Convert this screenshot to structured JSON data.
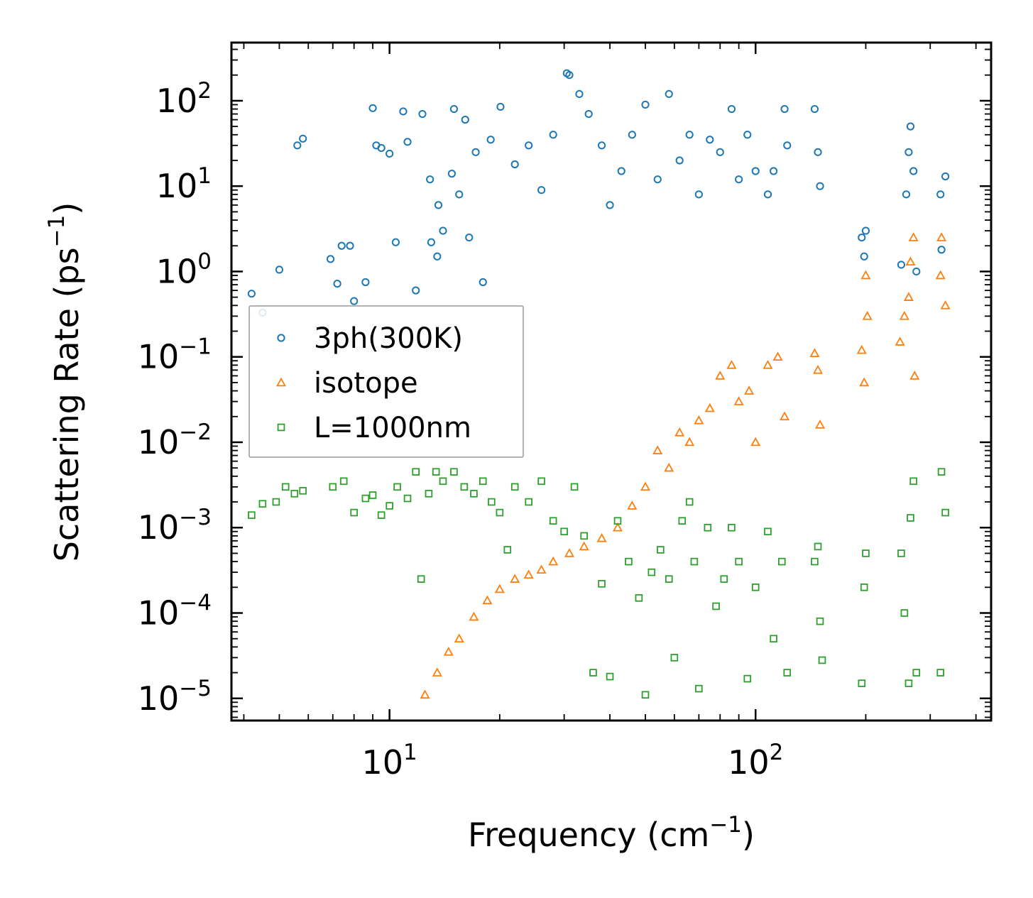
{
  "chart_data": {
    "type": "scatter",
    "xscale": "log",
    "yscale": "log",
    "xlabel": "Frequency",
    "xlabel_unit": "cm",
    "xlabel_unit_exp": "−1",
    "ylabel": "Scattering Rate",
    "ylabel_unit": "ps",
    "ylabel_unit_exp": "−1",
    "xlim": [
      3.7,
      440
    ],
    "ylim": [
      5.5e-06,
      480
    ],
    "xticks": [
      {
        "value": 10,
        "base": "10",
        "exp": "1"
      },
      {
        "value": 100,
        "base": "10",
        "exp": "2"
      }
    ],
    "yticks": [
      {
        "value": 100,
        "base": "10",
        "exp": "2"
      },
      {
        "value": 10,
        "base": "10",
        "exp": "1"
      },
      {
        "value": 1,
        "base": "10",
        "exp": "0"
      },
      {
        "value": 0.1,
        "base": "10",
        "exp": "−1"
      },
      {
        "value": 0.01,
        "base": "10",
        "exp": "−2"
      },
      {
        "value": 0.001,
        "base": "10",
        "exp": "−3"
      },
      {
        "value": 0.0001,
        "base": "10",
        "exp": "−4"
      },
      {
        "value": 1e-05,
        "base": "10",
        "exp": "−5"
      }
    ],
    "legend_position": "center-left",
    "series": [
      {
        "name": "3ph(300K)",
        "marker": "circle",
        "color": "#1f77b4",
        "points": [
          [
            4.2,
            0.55
          ],
          [
            4.5,
            0.33
          ],
          [
            5.0,
            1.05
          ],
          [
            5.6,
            30
          ],
          [
            5.8,
            36
          ],
          [
            6.9,
            1.4
          ],
          [
            7.2,
            0.72
          ],
          [
            7.4,
            2.0
          ],
          [
            7.8,
            2.0
          ],
          [
            8.0,
            0.45
          ],
          [
            8.6,
            0.75
          ],
          [
            9.0,
            82
          ],
          [
            9.2,
            30
          ],
          [
            9.5,
            28
          ],
          [
            10.0,
            24
          ],
          [
            10.4,
            2.2
          ],
          [
            10.9,
            75
          ],
          [
            11.2,
            33
          ],
          [
            11.8,
            0.6
          ],
          [
            12.3,
            70
          ],
          [
            13.0,
            2.2
          ],
          [
            13.5,
            1.5
          ],
          [
            14.0,
            3.0
          ],
          [
            15.0,
            80
          ],
          [
            15.5,
            8
          ],
          [
            16.5,
            2.5
          ],
          [
            18.0,
            0.75
          ],
          [
            12.9,
            12
          ],
          [
            14.8,
            14
          ],
          [
            13.6,
            6
          ],
          [
            16.1,
            60
          ],
          [
            17.2,
            25
          ],
          [
            18.9,
            35
          ],
          [
            20.1,
            85
          ],
          [
            22.0,
            18
          ],
          [
            24.0,
            30
          ],
          [
            26.0,
            9
          ],
          [
            28.0,
            40
          ],
          [
            30.5,
            210
          ],
          [
            31.0,
            200
          ],
          [
            33.0,
            120
          ],
          [
            35.0,
            70
          ],
          [
            38.0,
            30
          ],
          [
            40.0,
            6
          ],
          [
            43.0,
            15
          ],
          [
            46.0,
            40
          ],
          [
            50.0,
            90
          ],
          [
            54.0,
            12
          ],
          [
            58.0,
            120
          ],
          [
            62.0,
            20
          ],
          [
            66.0,
            40
          ],
          [
            70.0,
            8
          ],
          [
            75.0,
            35
          ],
          [
            80.0,
            25
          ],
          [
            86.0,
            80
          ],
          [
            90.0,
            12
          ],
          [
            95.0,
            40
          ],
          [
            100.0,
            15
          ],
          [
            108.0,
            8
          ],
          [
            112.0,
            15
          ],
          [
            120.0,
            80
          ],
          [
            122.0,
            30
          ],
          [
            145.0,
            80
          ],
          [
            148.0,
            25
          ],
          [
            150.0,
            10
          ],
          [
            195.0,
            2.5
          ],
          [
            198.0,
            1.5
          ],
          [
            200.0,
            3.0
          ],
          [
            250.0,
            1.2
          ],
          [
            258.0,
            8
          ],
          [
            262.0,
            25
          ],
          [
            265.0,
            50
          ],
          [
            270.0,
            15
          ],
          [
            275.0,
            1.0
          ],
          [
            320.0,
            8
          ],
          [
            322.0,
            1.8
          ],
          [
            330.0,
            13
          ]
        ]
      },
      {
        "name": "isotope",
        "marker": "triangle",
        "color": "#ff7f0e",
        "points": [
          [
            12.5,
            1.1e-05
          ],
          [
            13.5,
            2e-05
          ],
          [
            14.5,
            3.5e-05
          ],
          [
            15.5,
            5e-05
          ],
          [
            17.0,
            9e-05
          ],
          [
            18.5,
            0.00014
          ],
          [
            20.0,
            0.00019
          ],
          [
            22.0,
            0.00025
          ],
          [
            24.0,
            0.00028
          ],
          [
            26.0,
            0.00032
          ],
          [
            28.0,
            0.0004
          ],
          [
            31.0,
            0.0005
          ],
          [
            34.0,
            0.0006
          ],
          [
            38.0,
            0.00075
          ],
          [
            42.0,
            0.001
          ],
          [
            46.0,
            0.0018
          ],
          [
            50.0,
            0.003
          ],
          [
            54.0,
            0.008
          ],
          [
            58.0,
            0.005
          ],
          [
            62.0,
            0.013
          ],
          [
            66.0,
            0.01
          ],
          [
            70.0,
            0.018
          ],
          [
            75.0,
            0.025
          ],
          [
            80.0,
            0.06
          ],
          [
            86.0,
            0.08
          ],
          [
            90.0,
            0.03
          ],
          [
            96.0,
            0.04
          ],
          [
            100.0,
            0.01
          ],
          [
            108.0,
            0.08
          ],
          [
            115.0,
            0.1
          ],
          [
            120.0,
            0.02
          ],
          [
            145.0,
            0.11
          ],
          [
            148.0,
            0.07
          ],
          [
            150.0,
            0.016
          ],
          [
            195.0,
            0.12
          ],
          [
            198.0,
            0.05
          ],
          [
            200.0,
            0.9
          ],
          [
            202.0,
            0.3
          ],
          [
            248.0,
            0.15
          ],
          [
            255.0,
            0.3
          ],
          [
            262.0,
            0.5
          ],
          [
            265.0,
            1.3
          ],
          [
            270.0,
            2.5
          ],
          [
            272.0,
            0.06
          ],
          [
            320.0,
            0.9
          ],
          [
            322.0,
            2.5
          ],
          [
            330.0,
            0.4
          ]
        ]
      },
      {
        "name": "L=1000nm",
        "marker": "square",
        "color": "#2ca02c",
        "points": [
          [
            4.2,
            0.0014
          ],
          [
            4.5,
            0.0019
          ],
          [
            4.9,
            0.002
          ],
          [
            5.2,
            0.003
          ],
          [
            5.5,
            0.0025
          ],
          [
            5.8,
            0.0027
          ],
          [
            7.0,
            0.003
          ],
          [
            7.5,
            0.0035
          ],
          [
            8.0,
            0.0015
          ],
          [
            8.6,
            0.0022
          ],
          [
            9.0,
            0.0024
          ],
          [
            9.5,
            0.0014
          ],
          [
            10.0,
            0.0018
          ],
          [
            10.5,
            0.003
          ],
          [
            11.2,
            0.0022
          ],
          [
            11.8,
            0.0045
          ],
          [
            12.2,
            0.00025
          ],
          [
            12.8,
            0.0025
          ],
          [
            13.4,
            0.0045
          ],
          [
            14.0,
            0.0035
          ],
          [
            15.0,
            0.0045
          ],
          [
            16.0,
            0.003
          ],
          [
            17.0,
            0.0025
          ],
          [
            18.0,
            0.0035
          ],
          [
            19.0,
            0.002
          ],
          [
            20.0,
            0.0015
          ],
          [
            21.0,
            0.00055
          ],
          [
            22.0,
            0.003
          ],
          [
            24.0,
            0.002
          ],
          [
            26.0,
            0.0035
          ],
          [
            28.0,
            0.0012
          ],
          [
            30.0,
            0.0009
          ],
          [
            32.0,
            0.003
          ],
          [
            34.0,
            0.0008
          ],
          [
            36.0,
            2e-05
          ],
          [
            38.0,
            0.00022
          ],
          [
            40.0,
            1.8e-05
          ],
          [
            42.0,
            0.0012
          ],
          [
            45.0,
            0.0004
          ],
          [
            48.0,
            0.00015
          ],
          [
            50.0,
            1.1e-05
          ],
          [
            52.0,
            0.0003
          ],
          [
            55.0,
            0.00055
          ],
          [
            58.0,
            0.00025
          ],
          [
            60.0,
            3e-05
          ],
          [
            63.0,
            0.0012
          ],
          [
            66.0,
            0.002
          ],
          [
            68.0,
            0.0004
          ],
          [
            70.0,
            1.3e-05
          ],
          [
            74.0,
            0.001
          ],
          [
            78.0,
            0.00012
          ],
          [
            82.0,
            0.00025
          ],
          [
            86.0,
            0.001
          ],
          [
            90.0,
            0.0004
          ],
          [
            95.0,
            1.7e-05
          ],
          [
            100.0,
            0.0002
          ],
          [
            108.0,
            0.0009
          ],
          [
            112.0,
            5e-05
          ],
          [
            118.0,
            0.0004
          ],
          [
            122.0,
            2e-05
          ],
          [
            145.0,
            0.0004
          ],
          [
            148.0,
            0.0006
          ],
          [
            150.0,
            8e-05
          ],
          [
            152.0,
            2.8e-05
          ],
          [
            195.0,
            1.5e-05
          ],
          [
            198.0,
            0.0002
          ],
          [
            200.0,
            0.0005
          ],
          [
            250.0,
            0.0005
          ],
          [
            255.0,
            0.0001
          ],
          [
            262.0,
            1.5e-05
          ],
          [
            265.0,
            0.0013
          ],
          [
            270.0,
            0.0035
          ],
          [
            275.0,
            2e-05
          ],
          [
            320.0,
            2e-05
          ],
          [
            322.0,
            0.0045
          ],
          [
            330.0,
            0.0015
          ]
        ]
      }
    ]
  }
}
